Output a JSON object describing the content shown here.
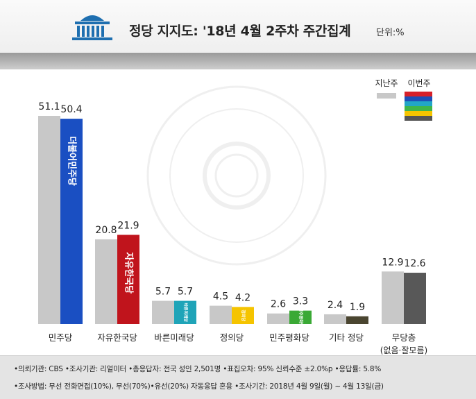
{
  "title": "정당 지지도: '18년 4월 2주차 주간집계",
  "unit": "단위:%",
  "legend": {
    "prev_label": "지난주",
    "curr_label": "이번주",
    "prev_color": "#c8c8c8",
    "curr_colors": [
      "#d7202a",
      "#1d4fb8",
      "#21a6c7",
      "#3fb54a",
      "#f5c400",
      "#555555"
    ]
  },
  "chart_data": {
    "type": "bar",
    "categories": [
      "민주당",
      "자유한국당",
      "바른미래당",
      "정의당",
      "민주평화당",
      "기타 정당",
      "무당층"
    ],
    "category_sublabels": [
      "",
      "",
      "",
      "",
      "",
      "",
      "(없음·잘모름)"
    ],
    "series": [
      {
        "name": "지난주",
        "values": [
          51.1,
          20.8,
          5.7,
          4.5,
          2.6,
          2.4,
          12.9
        ],
        "color": "#c8c8c8"
      },
      {
        "name": "이번주",
        "values": [
          50.4,
          21.9,
          5.7,
          4.2,
          3.3,
          1.9,
          12.6
        ],
        "colors": [
          "#1a4fc2",
          "#c0141c",
          "#1fa4b8",
          "#f5c400",
          "#3aa935",
          "#4a4530",
          "#585858"
        ]
      }
    ],
    "value_labels": {
      "prev": [
        "51.1",
        "20.8",
        "5.7",
        "4.5",
        "2.6",
        "2.4",
        "12.9"
      ],
      "curr": [
        "50.4",
        "21.9",
        "5.7",
        "4.2",
        "3.3",
        "1.9",
        "12.6"
      ]
    },
    "bar_logos": [
      "더불어민주당",
      "자유한국당",
      "바른미래당",
      "정의당",
      "민주평화당",
      "",
      ""
    ],
    "ylim": [
      0,
      55
    ],
    "grid": false,
    "legend_position": "top-right"
  },
  "footer": {
    "line1": "•의뢰기관: CBS •조사기관: 리얼미터 •총응답자: 전국 성인 2,501명 •표집오차: 95% 신뢰수준 ±2.0%p •응답률: 5.8%",
    "line2": "•조사방법: 무선 전화면접(10%), 무선(70%)•유선(20%) 자동응답 혼용 •조사기간: 2018년 4월 9일(월) ~ 4월 13일(금)"
  }
}
